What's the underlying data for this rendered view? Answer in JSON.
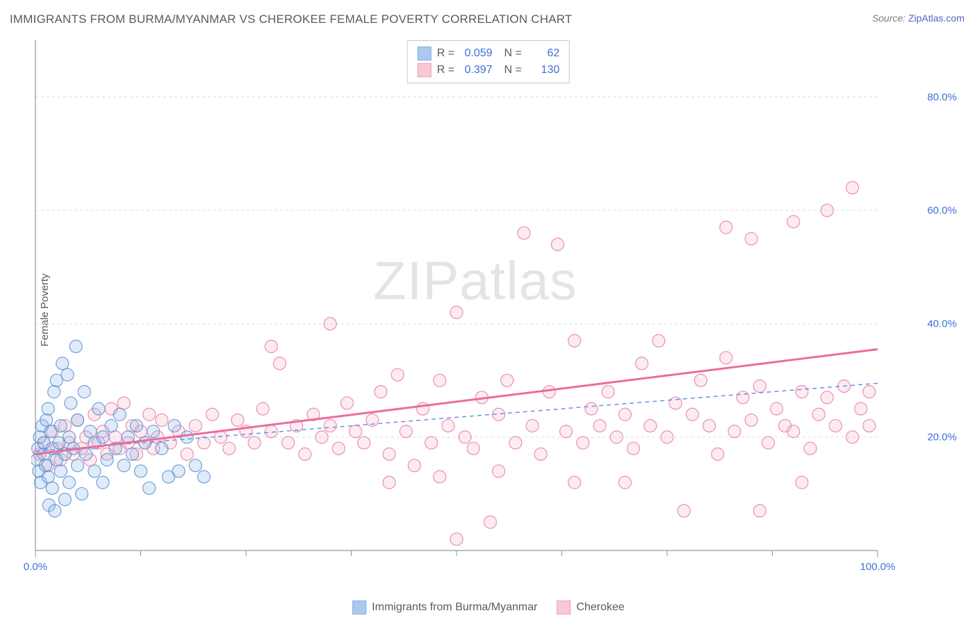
{
  "title": "IMMIGRANTS FROM BURMA/MYANMAR VS CHEROKEE FEMALE POVERTY CORRELATION CHART",
  "source": {
    "prefix": "Source: ",
    "name": "ZipAtlas.com"
  },
  "ylabel": "Female Poverty",
  "watermark": {
    "zip": "ZIP",
    "atlas": "atlas"
  },
  "chart": {
    "type": "scatter",
    "background_color": "#ffffff",
    "grid_color": "#d9dde2",
    "axis_color": "#8f969e",
    "tick_color": "#8f969e",
    "label_color": "#3d6fd6",
    "xlim": [
      0,
      100
    ],
    "ylim": [
      0,
      90
    ],
    "x_ticks_major": [
      0,
      100
    ],
    "x_tick_labels": [
      "0.0%",
      "100.0%"
    ],
    "x_ticks_minor": [
      12.5,
      25,
      37.5,
      50,
      62.5,
      75,
      87.5
    ],
    "y_ticks_major": [
      20,
      40,
      60,
      80
    ],
    "y_tick_labels": [
      "20.0%",
      "40.0%",
      "60.0%",
      "80.0%"
    ],
    "y_gridlines": [
      20,
      40,
      60,
      80
    ],
    "marker_radius": 9,
    "marker_opacity": 0.28,
    "marker_stroke_opacity": 0.85,
    "series": [
      {
        "name": "Immigrants from Burma/Myanmar",
        "fill": "#8fb7ea",
        "stroke": "#5b8fd6",
        "r_value": "0.059",
        "n_value": "62",
        "trend": {
          "x1": 0,
          "y1": 17.5,
          "x2": 100,
          "y2": 29.5,
          "dash": "6,5",
          "width": 1.5,
          "color": "#6a93d6"
        },
        "points": [
          [
            0.2,
            16
          ],
          [
            0.3,
            18
          ],
          [
            0.4,
            14
          ],
          [
            0.5,
            20
          ],
          [
            0.6,
            12
          ],
          [
            0.8,
            22
          ],
          [
            1,
            17
          ],
          [
            1,
            19
          ],
          [
            1.2,
            15
          ],
          [
            1.3,
            23
          ],
          [
            1.5,
            13
          ],
          [
            1.5,
            25
          ],
          [
            1.6,
            8
          ],
          [
            1.8,
            21
          ],
          [
            2,
            18
          ],
          [
            2,
            11
          ],
          [
            2.2,
            28
          ],
          [
            2.3,
            7
          ],
          [
            2.5,
            16
          ],
          [
            2.5,
            30
          ],
          [
            2.8,
            19
          ],
          [
            3,
            14
          ],
          [
            3,
            22
          ],
          [
            3.2,
            33
          ],
          [
            3.5,
            17
          ],
          [
            3.5,
            9
          ],
          [
            3.8,
            31
          ],
          [
            4,
            20
          ],
          [
            4,
            12
          ],
          [
            4.2,
            26
          ],
          [
            4.5,
            18
          ],
          [
            4.8,
            36
          ],
          [
            5,
            15
          ],
          [
            5,
            23
          ],
          [
            5.5,
            10
          ],
          [
            5.8,
            28
          ],
          [
            6,
            17
          ],
          [
            6.5,
            21
          ],
          [
            7,
            14
          ],
          [
            7,
            19
          ],
          [
            7.5,
            25
          ],
          [
            8,
            12
          ],
          [
            8,
            20
          ],
          [
            8.5,
            16
          ],
          [
            9,
            22
          ],
          [
            9.5,
            18
          ],
          [
            10,
            24
          ],
          [
            10.5,
            15
          ],
          [
            11,
            20
          ],
          [
            11.5,
            17
          ],
          [
            12,
            22
          ],
          [
            12.5,
            14
          ],
          [
            13,
            19
          ],
          [
            13.5,
            11
          ],
          [
            14,
            21
          ],
          [
            15,
            18
          ],
          [
            15.8,
            13
          ],
          [
            16.5,
            22
          ],
          [
            17,
            14
          ],
          [
            18,
            20
          ],
          [
            19,
            15
          ],
          [
            20,
            13
          ]
        ]
      },
      {
        "name": "Cherokee",
        "fill": "#f6b8c8",
        "stroke": "#e97da0",
        "r_value": "0.397",
        "n_value": "130",
        "trend": {
          "x1": 0,
          "y1": 17,
          "x2": 100,
          "y2": 35.5,
          "dash": "",
          "width": 3,
          "color": "#ec6c99"
        },
        "points": [
          [
            0.5,
            17
          ],
          [
            1,
            19
          ],
          [
            1.5,
            15
          ],
          [
            2,
            21
          ],
          [
            2.5,
            18
          ],
          [
            3,
            16
          ],
          [
            3.5,
            22
          ],
          [
            4,
            19
          ],
          [
            4.5,
            17
          ],
          [
            5,
            23
          ],
          [
            5.5,
            18
          ],
          [
            6,
            20
          ],
          [
            6.5,
            16
          ],
          [
            7,
            24
          ],
          [
            7.5,
            19
          ],
          [
            8,
            21
          ],
          [
            8.5,
            17
          ],
          [
            9,
            25
          ],
          [
            9.5,
            20
          ],
          [
            10,
            18
          ],
          [
            10.5,
            26
          ],
          [
            11,
            19
          ],
          [
            11.5,
            22
          ],
          [
            12,
            17
          ],
          [
            12.5,
            21
          ],
          [
            13,
            19
          ],
          [
            13.5,
            24
          ],
          [
            14,
            18
          ],
          [
            14.5,
            20
          ],
          [
            15,
            23
          ],
          [
            16,
            19
          ],
          [
            17,
            21
          ],
          [
            18,
            17
          ],
          [
            19,
            22
          ],
          [
            20,
            19
          ],
          [
            21,
            24
          ],
          [
            22,
            20
          ],
          [
            23,
            18
          ],
          [
            24,
            23
          ],
          [
            25,
            21
          ],
          [
            26,
            19
          ],
          [
            27,
            25
          ],
          [
            28,
            36
          ],
          [
            28,
            21
          ],
          [
            29,
            33
          ],
          [
            30,
            19
          ],
          [
            31,
            22
          ],
          [
            32,
            17
          ],
          [
            33,
            24
          ],
          [
            34,
            20
          ],
          [
            35,
            40
          ],
          [
            35,
            22
          ],
          [
            36,
            18
          ],
          [
            37,
            26
          ],
          [
            38,
            21
          ],
          [
            39,
            19
          ],
          [
            40,
            23
          ],
          [
            41,
            28
          ],
          [
            42,
            17
          ],
          [
            43,
            31
          ],
          [
            44,
            21
          ],
          [
            45,
            15
          ],
          [
            46,
            25
          ],
          [
            47,
            19
          ],
          [
            48,
            30
          ],
          [
            49,
            22
          ],
          [
            50,
            2
          ],
          [
            50,
            42
          ],
          [
            51,
            20
          ],
          [
            52,
            18
          ],
          [
            53,
            27
          ],
          [
            54,
            5
          ],
          [
            55,
            24
          ],
          [
            56,
            30
          ],
          [
            57,
            19
          ],
          [
            58,
            56
          ],
          [
            59,
            22
          ],
          [
            60,
            17
          ],
          [
            61,
            28
          ],
          [
            62,
            54
          ],
          [
            63,
            21
          ],
          [
            64,
            37
          ],
          [
            65,
            19
          ],
          [
            66,
            25
          ],
          [
            67,
            22
          ],
          [
            68,
            28
          ],
          [
            69,
            20
          ],
          [
            70,
            24
          ],
          [
            71,
            18
          ],
          [
            72,
            33
          ],
          [
            73,
            22
          ],
          [
            74,
            37
          ],
          [
            75,
            20
          ],
          [
            76,
            26
          ],
          [
            77,
            7
          ],
          [
            78,
            24
          ],
          [
            79,
            30
          ],
          [
            80,
            22
          ],
          [
            81,
            17
          ],
          [
            82,
            57
          ],
          [
            82,
            34
          ],
          [
            83,
            21
          ],
          [
            84,
            27
          ],
          [
            85,
            55
          ],
          [
            85,
            23
          ],
          [
            86,
            29
          ],
          [
            86,
            7
          ],
          [
            87,
            19
          ],
          [
            88,
            25
          ],
          [
            89,
            22
          ],
          [
            90,
            58
          ],
          [
            90,
            21
          ],
          [
            91,
            28
          ],
          [
            91,
            12
          ],
          [
            92,
            18
          ],
          [
            93,
            24
          ],
          [
            94,
            60
          ],
          [
            94,
            27
          ],
          [
            95,
            22
          ],
          [
            96,
            29
          ],
          [
            97,
            64
          ],
          [
            97,
            20
          ],
          [
            98,
            25
          ],
          [
            99,
            22
          ],
          [
            99,
            28
          ],
          [
            70,
            12
          ],
          [
            64,
            12
          ],
          [
            55,
            14
          ],
          [
            48,
            13
          ],
          [
            42,
            12
          ]
        ]
      }
    ]
  },
  "legend_top": {
    "r_label": "R =",
    "n_label": "N ="
  }
}
